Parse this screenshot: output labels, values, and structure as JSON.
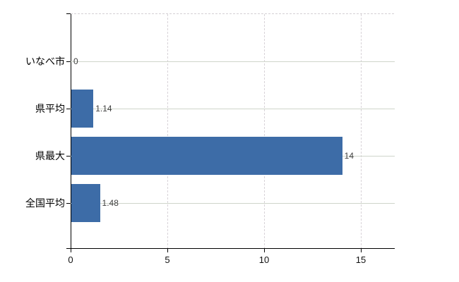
{
  "chart_data": {
    "type": "bar",
    "orientation": "horizontal",
    "title": "",
    "categories": [
      "いなべ市",
      "県平均",
      "県最大",
      "全国平均"
    ],
    "values": [
      0,
      1.14,
      14,
      1.48
    ],
    "value_labels": [
      "0",
      "1.14",
      "14",
      "1.48"
    ],
    "xticks": [
      0,
      5,
      10,
      15
    ],
    "xtick_labels": [
      "0",
      "5",
      "10",
      "15"
    ],
    "xlim": [
      0,
      16.75
    ],
    "grid": true,
    "legend": false,
    "colors": {
      "bar": "#3d6ca7",
      "h_gridline": "#cfd5cb",
      "v_gridline": "#d8d3d8",
      "axis": "#000000",
      "category_label": "#000000",
      "value_label": "#404040",
      "tick_label": "#111111",
      "background": "#ffffff"
    }
  }
}
